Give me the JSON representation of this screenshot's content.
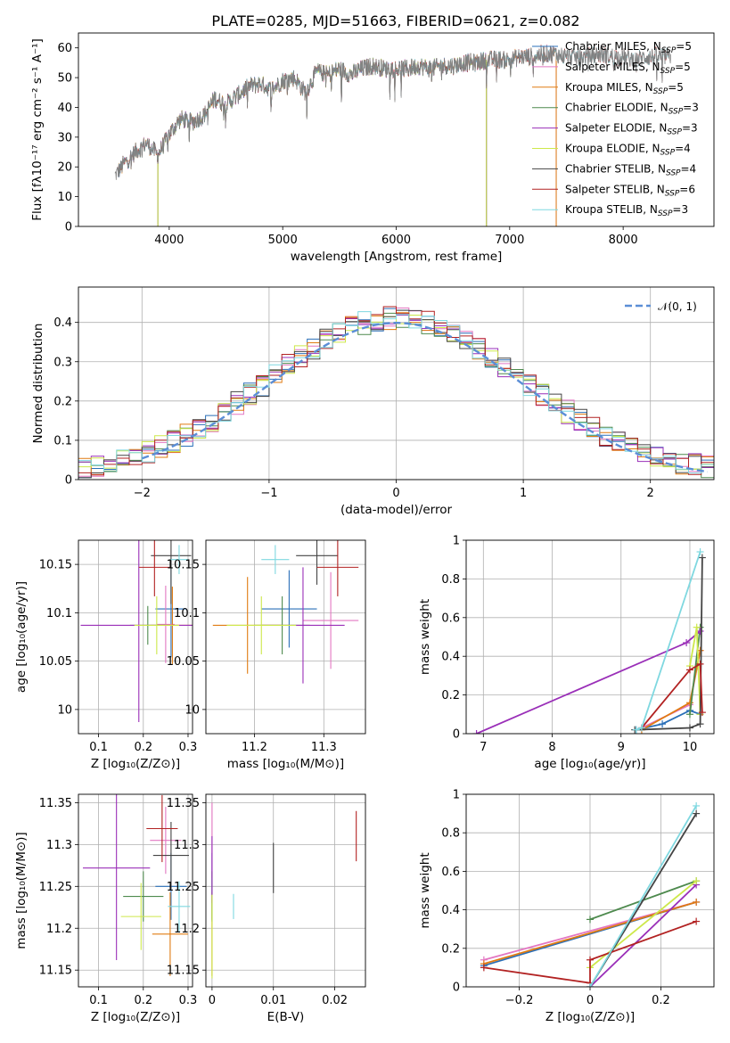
{
  "figure_title": "PLATE=0285, MJD=51663, FIBERID=0621, z=0.082",
  "colors": {
    "Chabrier MILES": "#2a6fb8",
    "Salpeter MILES": "#e377c2",
    "Kroupa MILES": "#e07b12",
    "Chabrier ELODIE": "#4e8a4e",
    "Salpeter ELODIE": "#9a2fb8",
    "Kroupa ELODIE": "#cde84a",
    "Chabrier STELIB": "#444444",
    "Salpeter STELIB": "#b22222",
    "Kroupa STELIB": "#7fd8e0",
    "gaussian": "#5b8ed6"
  },
  "chart_data": [
    {
      "type": "line",
      "title": "PLATE=0285, MJD=51663, FIBERID=0621, z=0.082",
      "xlabel": "wavelength [Angstrom, rest frame]",
      "ylabel": "Flux [fλ10⁻¹⁷ erg cm⁻² s⁻¹ A⁻¹]",
      "xlim": [
        3200,
        8800
      ],
      "ylim": [
        0,
        65
      ],
      "xticks": [
        4000,
        5000,
        6000,
        7000,
        8000
      ],
      "yticks": [
        0,
        10,
        20,
        30,
        40,
        50,
        60
      ],
      "legend_position": "right",
      "legend": [
        {
          "name": "Chabrier MILES",
          "nssp": "5"
        },
        {
          "name": "Salpeter MILES",
          "nssp": "5"
        },
        {
          "name": "Kroupa MILES",
          "nssp": "5"
        },
        {
          "name": "Chabrier ELODIE",
          "nssp": "3"
        },
        {
          "name": "Salpeter ELODIE",
          "nssp": "3"
        },
        {
          "name": "Kroupa ELODIE",
          "nssp": "4"
        },
        {
          "name": "Chabrier STELIB",
          "nssp": "4"
        },
        {
          "name": "Salpeter STELIB",
          "nssp": "6"
        },
        {
          "name": "Kroupa STELIB",
          "nssp": "3"
        }
      ],
      "continuum": [
        [
          3500,
          16
        ],
        [
          3600,
          21
        ],
        [
          3700,
          25
        ],
        [
          3800,
          28
        ],
        [
          3900,
          24
        ],
        [
          4000,
          31
        ],
        [
          4100,
          36
        ],
        [
          4200,
          35
        ],
        [
          4300,
          37
        ],
        [
          4400,
          43
        ],
        [
          4500,
          41
        ],
        [
          4600,
          44
        ],
        [
          4700,
          47
        ],
        [
          4800,
          48
        ],
        [
          4900,
          46
        ],
        [
          5000,
          49
        ],
        [
          5100,
          50
        ],
        [
          5200,
          45
        ],
        [
          5300,
          52
        ],
        [
          5400,
          51
        ],
        [
          5500,
          53
        ],
        [
          5600,
          51
        ],
        [
          5700,
          53
        ],
        [
          5800,
          54
        ],
        [
          5900,
          53
        ],
        [
          6000,
          53
        ],
        [
          6100,
          53
        ],
        [
          6200,
          54
        ],
        [
          6300,
          53
        ],
        [
          6400,
          54
        ],
        [
          6500,
          54
        ],
        [
          6600,
          55
        ],
        [
          6700,
          55
        ],
        [
          6800,
          56
        ],
        [
          6900,
          56
        ],
        [
          7000,
          56
        ],
        [
          7100,
          57
        ],
        [
          7200,
          57
        ],
        [
          7300,
          58
        ],
        [
          7400,
          58
        ],
        [
          7500,
          57
        ],
        [
          7600,
          57
        ],
        [
          7700,
          57
        ],
        [
          7800,
          58
        ],
        [
          7900,
          57
        ],
        [
          8000,
          57
        ],
        [
          8100,
          56
        ],
        [
          8200,
          57
        ],
        [
          8300,
          57
        ],
        [
          8400,
          57
        ]
      ],
      "model_ranges": [
        {
          "name": "Chabrier MILES",
          "x": [
            3540,
            7410
          ]
        },
        {
          "name": "Salpeter MILES",
          "x": [
            3540,
            7410
          ]
        },
        {
          "name": "Kroupa MILES",
          "x": [
            3540,
            7410
          ]
        },
        {
          "name": "Chabrier ELODIE",
          "x": [
            3900,
            6795
          ]
        },
        {
          "name": "Salpeter ELODIE",
          "x": [
            3900,
            6795
          ]
        },
        {
          "name": "Kroupa ELODIE",
          "x": [
            3900,
            6795
          ]
        },
        {
          "name": "Chabrier STELIB",
          "x": [
            3540,
            8400
          ]
        },
        {
          "name": "Salpeter STELIB",
          "x": [
            3540,
            8400
          ]
        },
        {
          "name": "Kroupa STELIB",
          "x": [
            3540,
            8400
          ]
        }
      ]
    },
    {
      "type": "line",
      "xlabel": "(data-model)/error",
      "ylabel": "Normed distribution",
      "xlim": [
        -2.5,
        2.5
      ],
      "ylim": [
        0,
        0.49
      ],
      "xticks": [
        -2,
        -1,
        0,
        1,
        2
      ],
      "yticks": [
        0.0,
        0.1,
        0.2,
        0.3,
        0.4
      ],
      "gaussian_label": "𝒩(0, 1)",
      "legend_position": "top-right",
      "grid": true,
      "histogram_bin_width": 0.1,
      "series": [
        "Chabrier MILES",
        "Salpeter MILES",
        "Kroupa MILES",
        "Chabrier ELODIE",
        "Salpeter ELODIE",
        "Kroupa ELODIE",
        "Chabrier STELIB",
        "Salpeter STELIB",
        "Kroupa STELIB"
      ]
    },
    {
      "type": "scatter",
      "xlabel": "Z [log₁₀(Z/Z⊙)]",
      "ylabel": "age  [log₁₀(age/yr)]",
      "xlim": [
        0.055,
        0.31
      ],
      "ylim": [
        9.975,
        10.175
      ],
      "xticks": [
        0.1,
        0.2,
        0.3
      ],
      "yticks": [
        10.0,
        10.05,
        10.1,
        10.15
      ],
      "points": [
        {
          "name": "Chabrier MILES",
          "x": 0.262,
          "y": 10.104,
          "xerr": 0.035,
          "yerr": 0.05
        },
        {
          "name": "Salpeter MILES",
          "x": 0.25,
          "y": 10.088,
          "xerr": 0.02,
          "yerr": 0.04
        },
        {
          "name": "Kroupa MILES",
          "x": 0.265,
          "y": 10.087,
          "xerr": 0.05,
          "yerr": 0.04
        },
        {
          "name": "Chabrier ELODIE",
          "x": 0.21,
          "y": 10.087,
          "xerr": 0.04,
          "yerr": 0.02
        },
        {
          "name": "Salpeter ELODIE",
          "x": 0.19,
          "y": 10.087,
          "xerr": 0.13,
          "yerr": 0.1
        },
        {
          "name": "Kroupa ELODIE",
          "x": 0.23,
          "y": 10.087,
          "xerr": 0.05,
          "yerr": 0.03
        },
        {
          "name": "Chabrier STELIB",
          "x": 0.262,
          "y": 10.159,
          "xerr": 0.045,
          "yerr": 0.05
        },
        {
          "name": "Salpeter STELIB",
          "x": 0.225,
          "y": 10.147,
          "xerr": 0.035,
          "yerr": 0.03
        },
        {
          "name": "Kroupa STELIB",
          "x": 0.28,
          "y": 10.155,
          "xerr": 0.02,
          "yerr": 0.015
        }
      ]
    },
    {
      "type": "scatter",
      "xlabel": "mass [log₁₀(M/M⊙)]",
      "ylabel": "",
      "xlim": [
        11.13,
        11.36
      ],
      "ylim": [
        9.975,
        10.175
      ],
      "xticks": [
        11.2,
        11.3
      ],
      "yticks": [
        10.0,
        10.05,
        10.1,
        10.15
      ],
      "points": [
        {
          "name": "Chabrier MILES",
          "x": 11.25,
          "y": 10.104,
          "xerr": 0.04,
          "yerr": 0.04
        },
        {
          "name": "Salpeter MILES",
          "x": 11.31,
          "y": 10.092,
          "xerr": 0.04,
          "yerr": 0.05
        },
        {
          "name": "Kroupa MILES",
          "x": 11.19,
          "y": 10.087,
          "xerr": 0.05,
          "yerr": 0.05
        },
        {
          "name": "Chabrier ELODIE",
          "x": 11.24,
          "y": 10.087,
          "xerr": 0.04,
          "yerr": 0.03
        },
        {
          "name": "Salpeter ELODIE",
          "x": 11.27,
          "y": 10.087,
          "xerr": 0.06,
          "yerr": 0.06
        },
        {
          "name": "Kroupa ELODIE",
          "x": 11.21,
          "y": 10.087,
          "xerr": 0.05,
          "yerr": 0.03
        },
        {
          "name": "Chabrier STELIB",
          "x": 11.29,
          "y": 10.159,
          "xerr": 0.03,
          "yerr": 0.03
        },
        {
          "name": "Salpeter STELIB",
          "x": 11.32,
          "y": 10.147,
          "xerr": 0.03,
          "yerr": 0.03
        },
        {
          "name": "Kroupa STELIB",
          "x": 11.23,
          "y": 10.155,
          "xerr": 0.02,
          "yerr": 0.015
        }
      ]
    },
    {
      "type": "line",
      "xlabel": "age  [log₁₀(age/yr)]",
      "ylabel": "mass weight",
      "xlim": [
        6.75,
        10.35
      ],
      "ylim": [
        0,
        1
      ],
      "xticks": [
        7,
        8,
        9,
        10
      ],
      "yticks": [
        0.0,
        0.2,
        0.4,
        0.6,
        0.8,
        1.0
      ],
      "series": [
        {
          "name": "Chabrier MILES",
          "x": [
            9.22,
            9.6,
            10.0,
            10.15
          ],
          "y": [
            0.02,
            0.05,
            0.12,
            0.1
          ]
        },
        {
          "name": "Salpeter MILES",
          "x": [
            9.3,
            10.0,
            10.15
          ],
          "y": [
            0.03,
            0.15,
            0.43
          ]
        },
        {
          "name": "Kroupa MILES",
          "x": [
            9.3,
            10.0,
            10.15
          ],
          "y": [
            0.02,
            0.16,
            0.43
          ]
        },
        {
          "name": "Chabrier ELODIE",
          "x": [
            10.0,
            10.15
          ],
          "y": [
            0.1,
            0.55
          ]
        },
        {
          "name": "Salpeter ELODIE",
          "x": [
            6.9,
            9.95,
            10.15
          ],
          "y": [
            0.0,
            0.47,
            0.53
          ]
        },
        {
          "name": "Kroupa ELODIE",
          "x": [
            10.0,
            10.1,
            10.15
          ],
          "y": [
            0.35,
            0.55,
            0.1
          ]
        },
        {
          "name": "Chabrier STELIB",
          "x": [
            9.2,
            10.0,
            10.15,
            10.18
          ],
          "y": [
            0.02,
            0.03,
            0.05,
            0.91
          ]
        },
        {
          "name": "Salpeter STELIB",
          "x": [
            9.3,
            10.0,
            10.15,
            10.18
          ],
          "y": [
            0.03,
            0.33,
            0.36,
            0.11
          ]
        },
        {
          "name": "Kroupa STELIB",
          "x": [
            9.22,
            9.3,
            10.15
          ],
          "y": [
            0.02,
            0.03,
            0.94
          ]
        }
      ]
    },
    {
      "type": "scatter",
      "xlabel": "Z [log₁₀(Z/Z⊙)]",
      "ylabel": "mass [log₁₀(M/M⊙)]",
      "xlim": [
        0.055,
        0.31
      ],
      "ylim": [
        11.13,
        11.36
      ],
      "xticks": [
        0.1,
        0.2,
        0.3
      ],
      "yticks": [
        11.15,
        11.2,
        11.25,
        11.3,
        11.35
      ],
      "points": [
        {
          "name": "Chabrier MILES",
          "x": 0.262,
          "y": 11.25,
          "xerr": 0.035,
          "yerr": 0.04
        },
        {
          "name": "Salpeter MILES",
          "x": 0.25,
          "y": 11.305,
          "xerr": 0.035,
          "yerr": 0.04
        },
        {
          "name": "Kroupa MILES",
          "x": 0.26,
          "y": 11.193,
          "xerr": 0.04,
          "yerr": 0.05
        },
        {
          "name": "Chabrier ELODIE",
          "x": 0.2,
          "y": 11.238,
          "xerr": 0.045,
          "yerr": 0.03
        },
        {
          "name": "Salpeter ELODIE",
          "x": 0.14,
          "y": 11.272,
          "xerr": 0.075,
          "yerr": 0.11
        },
        {
          "name": "Kroupa ELODIE",
          "x": 0.195,
          "y": 11.214,
          "xerr": 0.045,
          "yerr": 0.04
        },
        {
          "name": "Chabrier STELIB",
          "x": 0.262,
          "y": 11.287,
          "xerr": 0.04,
          "yerr": 0.04
        },
        {
          "name": "Salpeter STELIB",
          "x": 0.242,
          "y": 11.319,
          "xerr": 0.035,
          "yerr": 0.04
        },
        {
          "name": "Kroupa STELIB",
          "x": 0.28,
          "y": 11.226,
          "xerr": 0.025,
          "yerr": 0.03
        }
      ]
    },
    {
      "type": "scatter",
      "xlabel": "E(B-V)",
      "ylabel": "",
      "xlim": [
        -0.001,
        0.025
      ],
      "ylim": [
        11.13,
        11.36
      ],
      "xticks": [
        0.0,
        0.01,
        0.02
      ],
      "yticks": [
        11.15,
        11.2,
        11.25,
        11.3,
        11.35
      ],
      "points": [
        {
          "name": "Chabrier MILES",
          "x": 0.0,
          "y": 11.25,
          "xerr": 0.0,
          "yerr": 0.04
        },
        {
          "name": "Salpeter MILES",
          "x": 0.0,
          "y": 11.305,
          "xerr": 0.0,
          "yerr": 0.045
        },
        {
          "name": "Kroupa MILES",
          "x": 0.0,
          "y": 11.193,
          "xerr": 0.0,
          "yerr": 0.05
        },
        {
          "name": "Chabrier ELODIE",
          "x": 0.0,
          "y": 11.238,
          "xerr": 0.0,
          "yerr": 0.03
        },
        {
          "name": "Salpeter ELODIE",
          "x": 0.0,
          "y": 11.27,
          "xerr": 0.0,
          "yerr": 0.04
        },
        {
          "name": "Kroupa ELODIE",
          "x": 0.0,
          "y": 11.19,
          "xerr": 0.0,
          "yerr": 0.05
        },
        {
          "name": "Chabrier STELIB",
          "x": 0.01,
          "y": 11.272,
          "xerr": 0.0,
          "yerr": 0.03
        },
        {
          "name": "Salpeter STELIB",
          "x": 0.0235,
          "y": 11.31,
          "xerr": 0.0,
          "yerr": 0.03
        },
        {
          "name": "Kroupa STELIB",
          "x": 0.0035,
          "y": 11.226,
          "xerr": 0.0,
          "yerr": 0.015
        }
      ]
    },
    {
      "type": "line",
      "xlabel": "Z [log₁₀(Z/Z⊙)]",
      "ylabel": "mass weight",
      "xlim": [
        -0.35,
        0.35
      ],
      "ylim": [
        0,
        1
      ],
      "xticks": [
        -0.2,
        0.0,
        0.2
      ],
      "yticks": [
        0.0,
        0.2,
        0.4,
        0.6,
        0.8,
        1.0
      ],
      "series": [
        {
          "name": "Chabrier MILES",
          "x": [
            -0.3,
            0.3
          ],
          "y": [
            0.11,
            0.44
          ]
        },
        {
          "name": "Salpeter MILES",
          "x": [
            -0.3,
            0.3
          ],
          "y": [
            0.14,
            0.44
          ]
        },
        {
          "name": "Kroupa MILES",
          "x": [
            -0.3,
            0.3
          ],
          "y": [
            0.12,
            0.44
          ]
        },
        {
          "name": "Chabrier ELODIE",
          "x": [
            0.0,
            0.3
          ],
          "y": [
            0.35,
            0.55
          ]
        },
        {
          "name": "Salpeter ELODIE",
          "x": [
            0.0,
            0.3
          ],
          "y": [
            0.0,
            0.53
          ]
        },
        {
          "name": "Kroupa ELODIE",
          "x": [
            0.0,
            0.3
          ],
          "y": [
            0.1,
            0.55
          ]
        },
        {
          "name": "Chabrier STELIB",
          "x": [
            0.0,
            0.3
          ],
          "y": [
            0.0,
            0.9
          ]
        },
        {
          "name": "Salpeter STELIB",
          "x": [
            -0.3,
            0.0,
            0.0,
            0.3
          ],
          "y": [
            0.1,
            0.02,
            0.14,
            0.34
          ]
        },
        {
          "name": "Kroupa STELIB",
          "x": [
            0.0,
            0.3
          ],
          "y": [
            0.0,
            0.94
          ]
        }
      ]
    }
  ]
}
